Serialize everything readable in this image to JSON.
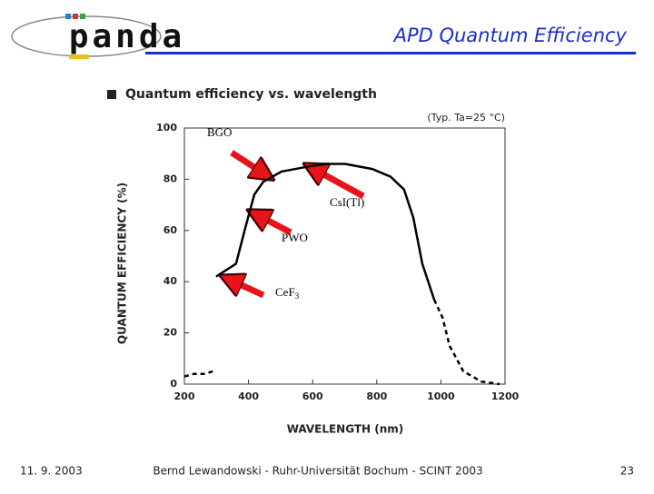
{
  "header": {
    "logo": "panda",
    "title": "APD Quantum Efficiency"
  },
  "footer": {
    "date": "11. 9. 2003",
    "author": "Bernd Lewandowski - Ruhr-Universität Bochum - SCINT 2003",
    "page": "23"
  },
  "chart_data": {
    "type": "line",
    "title": "Quantum efficiency vs. wavelength",
    "subtitle": "(Typ. Ta=25 °C)",
    "x_label": "WAVELENGTH (nm)",
    "y_label": "QUANTUM EFFICIENCY (%)",
    "xlim": [
      200,
      1200
    ],
    "ylim": [
      0,
      100
    ],
    "xticks": [
      200,
      400,
      600,
      800,
      1000,
      1200
    ],
    "yticks": [
      0,
      20,
      40,
      60,
      80,
      100
    ],
    "series": [
      {
        "color": "#000000",
        "style": "dashed",
        "x": [
          200,
          230,
          260,
          290,
          299
        ],
        "values": [
          3,
          4,
          4,
          5,
          5
        ]
      },
      {
        "color": "#000000",
        "style": "solid",
        "x": [
          299,
          361,
          390,
          418,
          446,
          503,
          588,
          645,
          701,
          786,
          843,
          885,
          914,
          942,
          979
        ],
        "values": [
          42,
          47,
          61,
          74,
          79,
          83,
          85,
          86,
          86,
          84,
          81,
          76,
          65,
          47,
          33
        ]
      },
      {
        "color": "#000000",
        "style": "dashed",
        "x": [
          979,
          1005,
          1027,
          1070,
          1126,
          1183
        ],
        "values": [
          33,
          26,
          15,
          5,
          1,
          0
        ]
      }
    ],
    "annotations": [
      {
        "text": "BGO"
      },
      {
        "text": "CsI(Tl)"
      },
      {
        "text": "PWO"
      },
      {
        "text": "CeF",
        "sub": "3"
      }
    ]
  }
}
